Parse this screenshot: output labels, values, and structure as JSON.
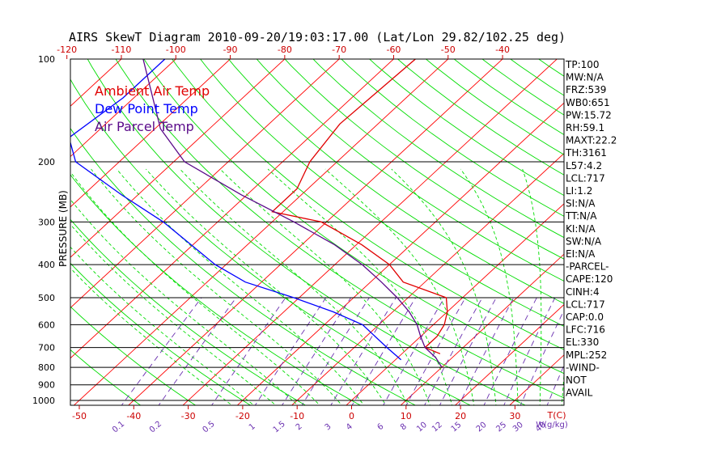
{
  "title": "AIRS SkewT Diagram 2010-09-20/19:03:17.00 (Lat/Lon 29.82/102.25 deg)",
  "colors": {
    "isotherm": "#ff0000",
    "dry_adiabat": "#00dd00",
    "moist_adiabat": "#00dd00",
    "mixing_ratio": "#6a30b0",
    "ambient": "#e00000",
    "dewpoint": "#0000ff",
    "parcel": "#5a0a8a",
    "frame": "#000000",
    "tick_red": "#cc0000",
    "mixing_label": "#6a30b0"
  },
  "chart_data": {
    "type": "line",
    "subtype": "skew-t log-p",
    "title": "AIRS SkewT Diagram 2010-09-20/19:03:17.00 (Lat/Lon 29.82/102.25 deg)",
    "ylabel": "PRESSURE (MB)",
    "xlabel_bottom_unit": "T(C)",
    "mixing_ratio_unit": "W(g/kg)",
    "ylim": [
      1050,
      100
    ],
    "pressure_levels": [
      100,
      200,
      300,
      400,
      500,
      600,
      700,
      800,
      900,
      1000
    ],
    "pressure_tick_labels": [
      "100",
      "200",
      "300",
      "400",
      "500",
      "600",
      "700",
      "800",
      "900",
      "1000"
    ],
    "top_temperature_ticks": [
      "-120",
      "-110",
      "-100",
      "-90",
      "-80",
      "-70",
      "-60",
      "-50",
      "-40"
    ],
    "bottom_temperature_ticks": [
      "-50",
      "-40",
      "-30",
      "-20",
      "-10",
      "0",
      "10",
      "20",
      "30"
    ],
    "mixing_ratio_labels": [
      "0.1",
      "0.2",
      "0.5",
      "1",
      "1.5",
      "2",
      "3",
      "4",
      "6",
      "8",
      "10",
      "12",
      "15",
      "20",
      "25",
      "30",
      "40"
    ],
    "legend": [
      {
        "label": "Ambient Air Temp",
        "color": "#e00000"
      },
      {
        "label": "Dew Point Temp",
        "color": "#0000ff"
      },
      {
        "label": "Air Parcel Temp",
        "color": "#5a0a8a"
      }
    ],
    "series": [
      {
        "name": "Ambient Air Temp",
        "points": [
          [
            100,
            -56
          ],
          [
            155,
            -57
          ],
          [
            200,
            -55
          ],
          [
            240,
            -52
          ],
          [
            280,
            -52
          ],
          [
            300,
            -41
          ],
          [
            350,
            -29
          ],
          [
            400,
            -20
          ],
          [
            450,
            -14
          ],
          [
            500,
            -3
          ],
          [
            550,
            0
          ],
          [
            600,
            2
          ],
          [
            650,
            3
          ],
          [
            700,
            3
          ],
          [
            730,
            7
          ]
        ]
      },
      {
        "name": "Dew Point Temp",
        "points": [
          [
            100,
            -102
          ],
          [
            130,
            -102
          ],
          [
            170,
            -104
          ],
          [
            200,
            -98
          ],
          [
            250,
            -83
          ],
          [
            300,
            -70
          ],
          [
            400,
            -52
          ],
          [
            450,
            -43
          ],
          [
            500,
            -31
          ],
          [
            550,
            -21
          ],
          [
            600,
            -13
          ],
          [
            700,
            -4
          ],
          [
            760,
            1
          ]
        ]
      },
      {
        "name": "Air Parcel Temp",
        "points": [
          [
            100,
            -106
          ],
          [
            160,
            -89
          ],
          [
            200,
            -78
          ],
          [
            250,
            -61
          ],
          [
            300,
            -46
          ],
          [
            350,
            -34
          ],
          [
            400,
            -25
          ],
          [
            450,
            -18
          ],
          [
            500,
            -12
          ],
          [
            550,
            -7
          ],
          [
            600,
            -3
          ],
          [
            650,
            0
          ],
          [
            700,
            3
          ],
          [
            750,
            7
          ],
          [
            800,
            10
          ]
        ]
      }
    ],
    "stats": [
      "TP:100",
      "MW:N/A",
      "FRZ:539",
      "WB0:651",
      "PW:15.72",
      "RH:59.1",
      "MAXT:22.2",
      "TH:3161",
      "L57:4.2",
      "LCL:717",
      "LI:1.2",
      "SI:N/A",
      "TT:N/A",
      "KI:N/A",
      "SW:N/A",
      "EI:N/A",
      "-PARCEL-",
      "CAPE:120",
      "CINH:4",
      "LCL:717",
      "CAP:0.0",
      "LFC:716",
      "EL:330",
      "MPL:252",
      "-WIND-",
      "NOT",
      "AVAIL"
    ]
  }
}
